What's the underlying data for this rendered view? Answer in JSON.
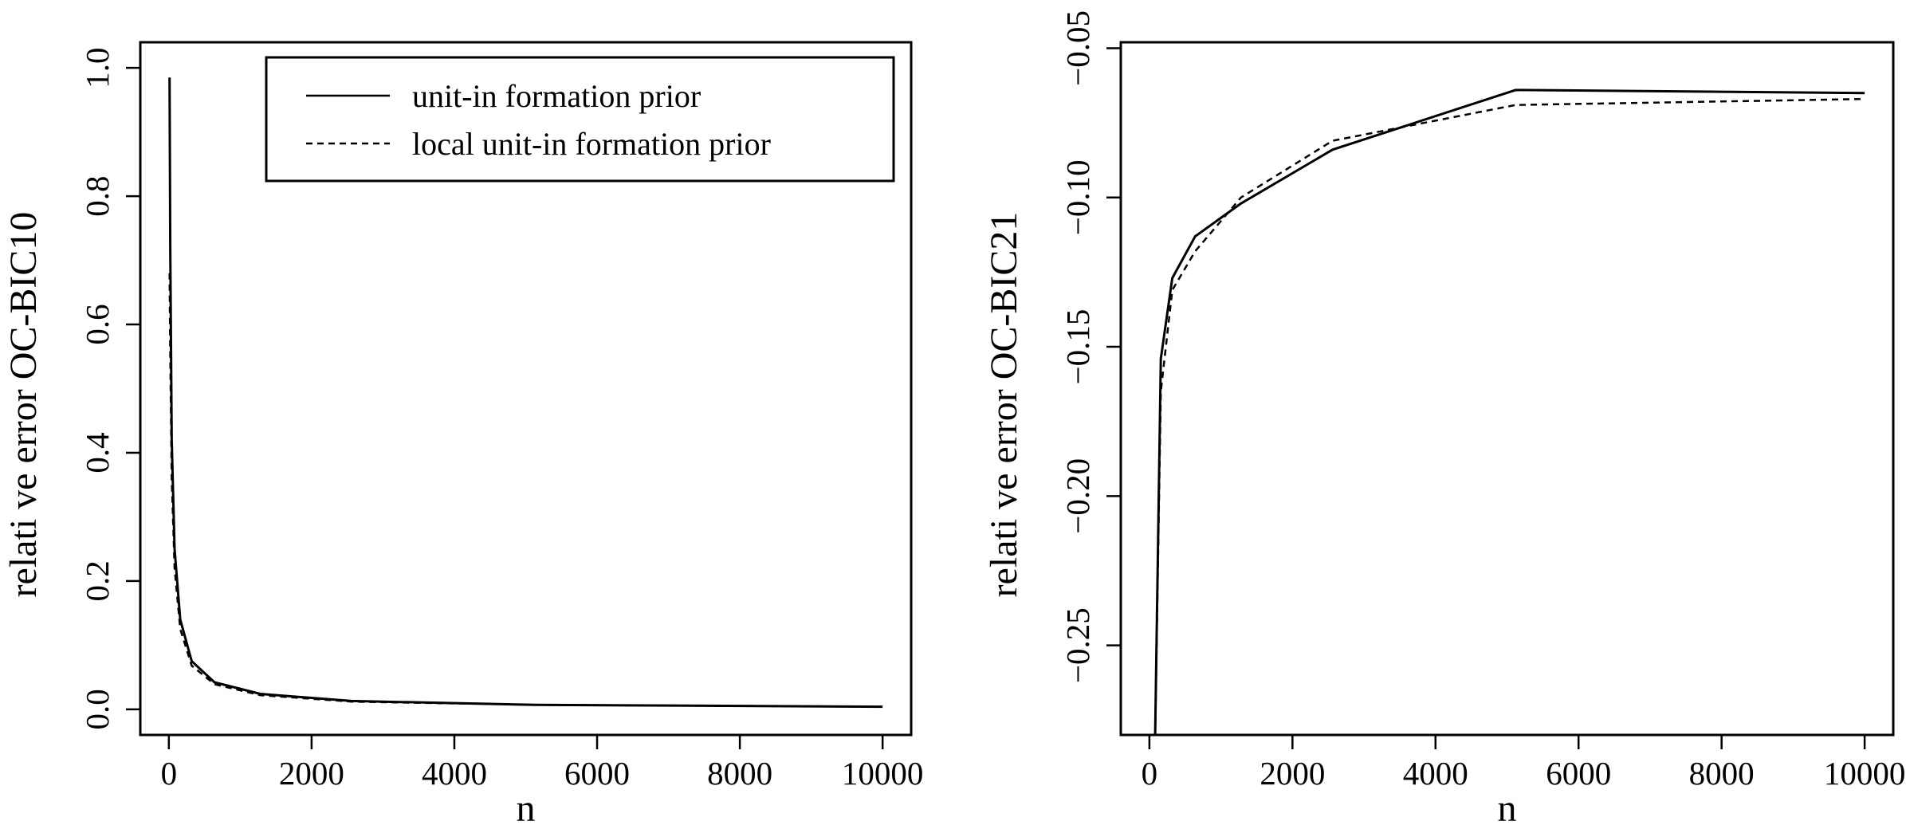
{
  "chart_data": [
    {
      "type": "line",
      "xlabel": "n",
      "ylabel": "relati ve error OC-BIC10",
      "xlim": [
        0,
        10000
      ],
      "ylim": [
        0.0,
        1.0
      ],
      "x_ticks": [
        "0",
        "2000",
        "4000",
        "6000",
        "8000",
        "10000"
      ],
      "y_ticks": [
        "0.0",
        "0.2",
        "0.4",
        "0.6",
        "0.8",
        "1.0"
      ],
      "legend": {
        "position": "top-right",
        "entries": [
          {
            "label": "unit-in formation prior",
            "style": "solid"
          },
          {
            "label": "local unit-in formation prior",
            "style": "dashed"
          }
        ]
      },
      "series": [
        {
          "name": "unit-in formation prior",
          "style": "solid",
          "x": [
            10,
            20,
            40,
            80,
            160,
            320,
            640,
            1280,
            2560,
            5120,
            10000
          ],
          "y": [
            0.985,
            0.72,
            0.42,
            0.25,
            0.14,
            0.075,
            0.042,
            0.024,
            0.013,
            0.007,
            0.004
          ]
        },
        {
          "name": "local unit-in formation prior",
          "style": "dashed",
          "x": [
            10,
            20,
            40,
            80,
            160,
            320,
            640,
            1280,
            2560,
            5120,
            10000
          ],
          "y": [
            0.68,
            0.55,
            0.36,
            0.22,
            0.125,
            0.068,
            0.039,
            0.022,
            0.012,
            0.007,
            0.004
          ]
        }
      ]
    },
    {
      "type": "line",
      "xlabel": "n",
      "ylabel": "relati ve error OC-BIC21",
      "xlim": [
        0,
        10000
      ],
      "ylim": [
        -0.28,
        -0.048
      ],
      "x_ticks": [
        "0",
        "2000",
        "4000",
        "6000",
        "8000",
        "10000"
      ],
      "y_ticks": [
        "−0.25",
        "−0.20",
        "−0.15",
        "−0.10",
        "−0.05"
      ],
      "series": [
        {
          "name": "unit-in formation prior",
          "style": "solid",
          "x": [
            80,
            160,
            320,
            640,
            1280,
            2560,
            5120,
            10000
          ],
          "y": [
            -0.28,
            -0.154,
            -0.127,
            -0.113,
            -0.102,
            -0.084,
            -0.064,
            -0.065
          ]
        },
        {
          "name": "local unit-in formation prior",
          "style": "dashed",
          "x": [
            80,
            160,
            320,
            640,
            1280,
            2560,
            5120,
            10000
          ],
          "y": [
            -0.28,
            -0.165,
            -0.131,
            -0.118,
            -0.1,
            -0.081,
            -0.069,
            -0.067
          ]
        }
      ]
    }
  ]
}
